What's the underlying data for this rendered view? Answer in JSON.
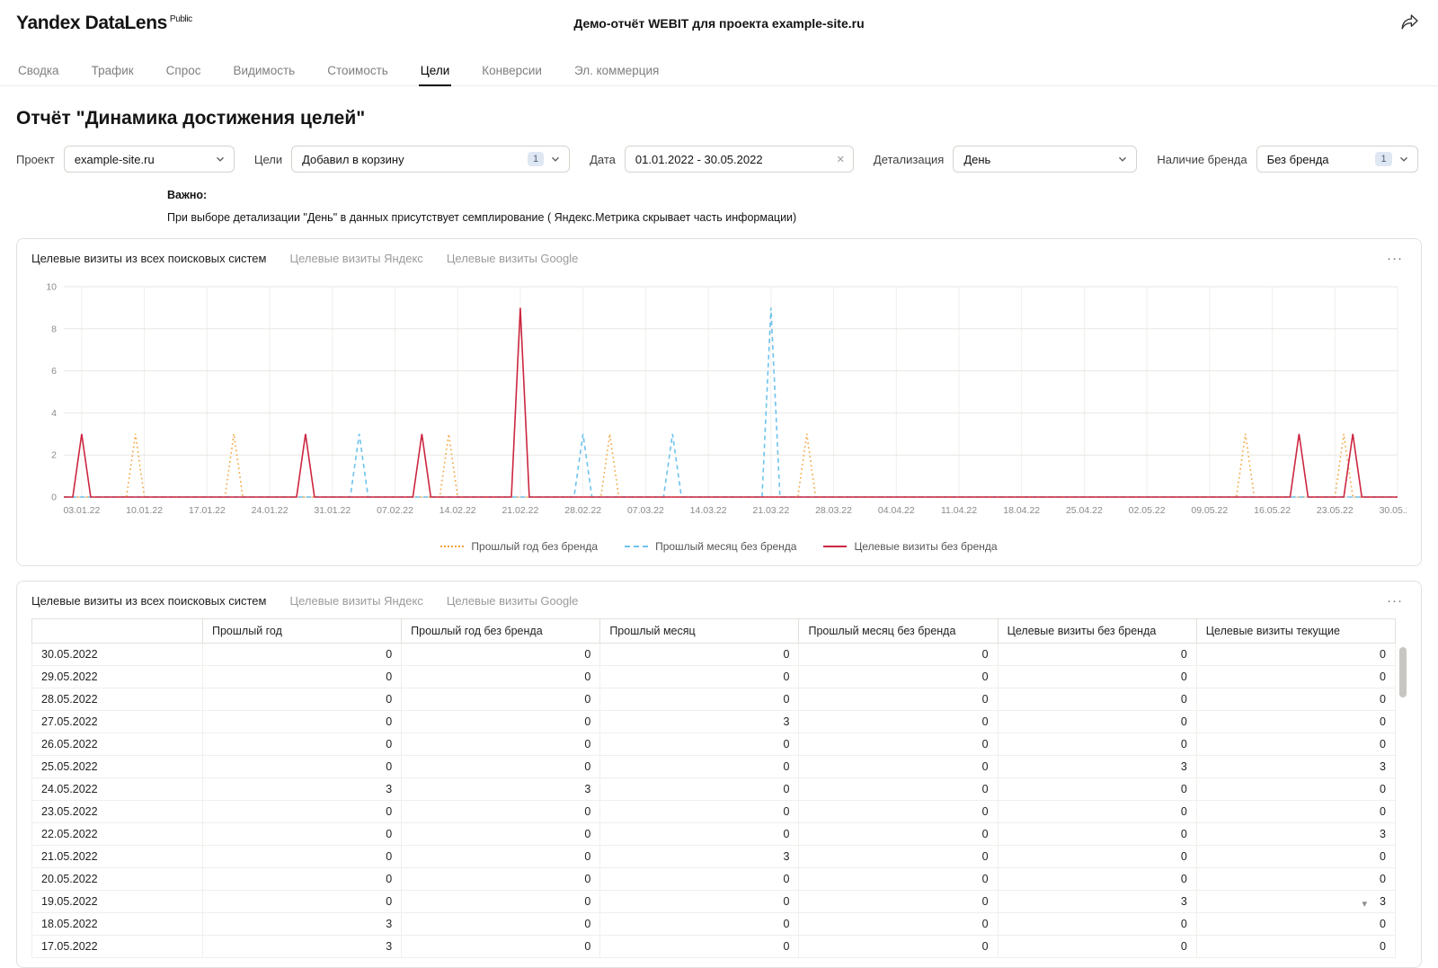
{
  "icons": {
    "more": "···",
    "clear": "✕"
  },
  "header": {
    "logo": "Yandex DataLens",
    "logo_badge": "Public",
    "title": "Демо-отчёт WEBIT для проекта example-site.ru"
  },
  "nav_tabs": [
    {
      "label": "Сводка",
      "active": false
    },
    {
      "label": "Трафик",
      "active": false
    },
    {
      "label": "Спрос",
      "active": false
    },
    {
      "label": "Видимость",
      "active": false
    },
    {
      "label": "Стоимость",
      "active": false
    },
    {
      "label": "Цели",
      "active": true
    },
    {
      "label": "Конверсии",
      "active": false
    },
    {
      "label": "Эл. коммерция",
      "active": false
    }
  ],
  "page": {
    "title": "Отчёт \"Динамика достижения целей\""
  },
  "filters": [
    {
      "key": "project",
      "label": "Проект",
      "value": "example-site.ru",
      "chevron": true
    },
    {
      "key": "goals",
      "label": "Цели",
      "value": "Добавил в корзину",
      "badge": "1",
      "chevron": true
    },
    {
      "key": "date",
      "label": "Дата",
      "value": "01.01.2022 - 30.05.2022",
      "clearable": true,
      "chevron": false
    },
    {
      "key": "detail",
      "label": "Детализация",
      "value": "День",
      "chevron": true
    },
    {
      "key": "brand",
      "label": "Наличие бренда",
      "value": "Без бренда",
      "badge": "1",
      "chevron": true
    }
  ],
  "notice": {
    "title": "Важно:",
    "text": "При выборе детализации \"День\" в данных присутствует семплирование ( Яндекс.Метрика скрывает часть информации)"
  },
  "chart_card": {
    "tabs": [
      {
        "label": "Целевые визиты из всех поисковых систем",
        "active": true
      },
      {
        "label": "Целевые визиты Яндекс",
        "active": false
      },
      {
        "label": "Целевые визиты Google",
        "active": false
      }
    ]
  },
  "chart_data": {
    "type": "line",
    "title": "Целевые визиты из всех поисковых систем",
    "x_start": "01.01.2022",
    "x_end": "30.05.2022",
    "x_tick_labels": [
      "03.01.22",
      "10.01.22",
      "17.01.22",
      "24.01.22",
      "31.01.22",
      "07.02.22",
      "14.02.22",
      "21.02.22",
      "28.02.22",
      "07.03.22",
      "14.03.22",
      "21.03.22",
      "28.03.22",
      "04.04.22",
      "11.04.22",
      "18.04.22",
      "25.04.22",
      "02.05.22",
      "09.05.22",
      "16.05.22",
      "23.05.22",
      "30.05.22"
    ],
    "ylim": [
      0,
      10
    ],
    "y_ticks": [
      0,
      2,
      4,
      6,
      8,
      10
    ],
    "grid": true,
    "legend_position": "bottom",
    "baseline_value": 0,
    "series": [
      {
        "name": "Прошлый год без бренда",
        "color": "#f0a33a",
        "style": "dotted",
        "points": [
          {
            "date": "09.01.2022",
            "value": 3
          },
          {
            "date": "20.01.2022",
            "value": 3
          },
          {
            "date": "13.02.2022",
            "value": 3
          },
          {
            "date": "03.03.2022",
            "value": 3
          },
          {
            "date": "25.03.2022",
            "value": 3
          },
          {
            "date": "13.05.2022",
            "value": 3
          },
          {
            "date": "24.05.2022",
            "value": 3
          }
        ]
      },
      {
        "name": "Прошлый месяц без бренда",
        "color": "#6fc2ee",
        "style": "dashed",
        "points": [
          {
            "date": "03.02.2022",
            "value": 3
          },
          {
            "date": "28.02.2022",
            "value": 3
          },
          {
            "date": "10.03.2022",
            "value": 3
          },
          {
            "date": "21.03.2022",
            "value": 9
          }
        ]
      },
      {
        "name": "Целевые визиты без бренда",
        "color": "#cc2640",
        "style": "solid",
        "points": [
          {
            "date": "03.01.2022",
            "value": 3
          },
          {
            "date": "28.01.2022",
            "value": 3
          },
          {
            "date": "10.02.2022",
            "value": 3
          },
          {
            "date": "21.02.2022",
            "value": 9
          },
          {
            "date": "19.05.2022",
            "value": 3
          },
          {
            "date": "25.05.2022",
            "value": 3
          }
        ]
      }
    ]
  },
  "table_card": {
    "tabs": [
      {
        "label": "Целевые визиты из всех поисковых систем",
        "active": true
      },
      {
        "label": "Целевые визиты Яндекс",
        "active": false
      },
      {
        "label": "Целевые визиты Google",
        "active": false
      }
    ]
  },
  "table": {
    "columns": [
      "",
      "Прошлый год",
      "Прошлый год без бренда",
      "Прошлый месяц",
      "Прошлый месяц без бренда",
      "Целевые визиты без бренда",
      "Целевые визиты текущие"
    ],
    "rows": [
      {
        "date": "30.05.2022",
        "values": [
          0,
          0,
          0,
          0,
          0,
          0
        ]
      },
      {
        "date": "29.05.2022",
        "values": [
          0,
          0,
          0,
          0,
          0,
          0
        ]
      },
      {
        "date": "28.05.2022",
        "values": [
          0,
          0,
          0,
          0,
          0,
          0
        ]
      },
      {
        "date": "27.05.2022",
        "values": [
          0,
          0,
          3,
          0,
          0,
          0
        ]
      },
      {
        "date": "26.05.2022",
        "values": [
          0,
          0,
          0,
          0,
          0,
          0
        ]
      },
      {
        "date": "25.05.2022",
        "values": [
          0,
          0,
          0,
          0,
          3,
          3
        ]
      },
      {
        "date": "24.05.2022",
        "values": [
          3,
          3,
          0,
          0,
          0,
          0
        ]
      },
      {
        "date": "23.05.2022",
        "values": [
          0,
          0,
          0,
          0,
          0,
          0
        ]
      },
      {
        "date": "22.05.2022",
        "values": [
          0,
          0,
          0,
          0,
          0,
          3
        ]
      },
      {
        "date": "21.05.2022",
        "values": [
          0,
          0,
          3,
          0,
          0,
          0
        ]
      },
      {
        "date": "20.05.2022",
        "values": [
          0,
          0,
          0,
          0,
          0,
          0
        ]
      },
      {
        "date": "19.05.2022",
        "values": [
          0,
          0,
          0,
          0,
          3,
          3
        ]
      },
      {
        "date": "18.05.2022",
        "values": [
          3,
          0,
          0,
          0,
          0,
          0
        ]
      },
      {
        "date": "17.05.2022",
        "values": [
          3,
          0,
          0,
          0,
          0,
          0
        ]
      }
    ]
  },
  "colors": {
    "accent_badge_bg": "#dfe7f3",
    "accent_badge_text": "#50617a",
    "active_tab_underline": "#000000"
  }
}
